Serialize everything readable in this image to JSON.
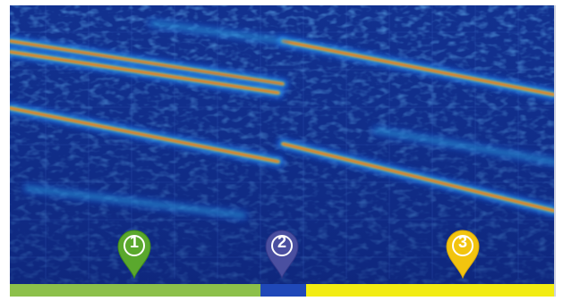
{
  "markers": [
    {
      "label": "1",
      "color": "#5aa82d"
    },
    {
      "label": "2",
      "color": "#4a4fa0"
    },
    {
      "label": "3",
      "color": "#f2c40f"
    }
  ],
  "timeline": {
    "segments": [
      {
        "color": "#8cc04a",
        "share": 0.461
      },
      {
        "color": "#1f48b8",
        "share": 0.084
      },
      {
        "color": "#f2ec12",
        "share": 0.455
      }
    ]
  },
  "colors": {
    "background": "#0e2a85",
    "low": "#1a5cd8",
    "mid": "#37c8e8",
    "high_yellow": "#f5e11c",
    "high_red": "#e8261c"
  }
}
